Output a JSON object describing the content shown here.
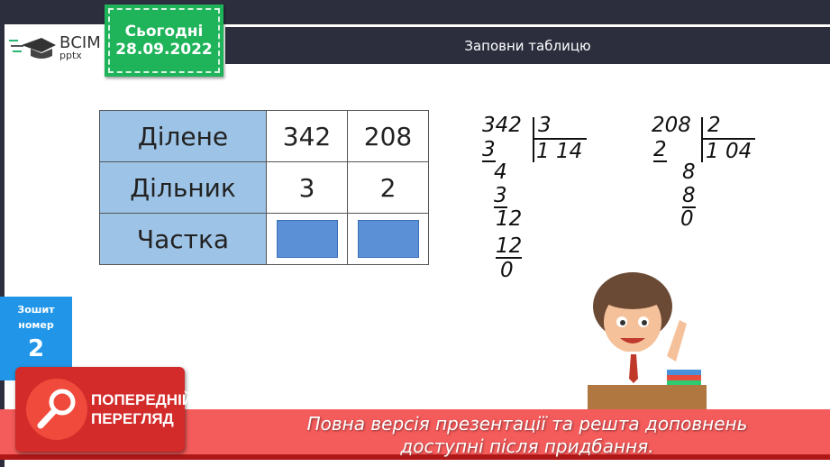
{
  "date_badge": {
    "label": "Сьогодні",
    "date": "28.09.2022"
  },
  "logo": {
    "line1": "ВСІМ",
    "line2": "pptx"
  },
  "header": {
    "title": "Заповни таблицю"
  },
  "table": {
    "rows": [
      {
        "label": "Ділене",
        "values": [
          "342",
          "208"
        ]
      },
      {
        "label": "Дільник",
        "values": [
          "3",
          "2"
        ]
      },
      {
        "label": "Частка",
        "values": [
          "",
          ""
        ]
      }
    ]
  },
  "division1": {
    "dividend": "342",
    "divisor": "3",
    "quotient": "1 14",
    "steps": [
      "3",
      "4",
      "3",
      "12",
      "12",
      "0"
    ]
  },
  "division2": {
    "dividend": "208",
    "divisor": "2",
    "quotient": "1 04",
    "steps": [
      "2",
      "8",
      "8",
      "0"
    ]
  },
  "notebook": {
    "line1": "Зошит",
    "line2": "номер",
    "number": "2"
  },
  "preview_badge": {
    "line1": "ПОПЕРЕДНІЙ",
    "line2": "ПЕРЕГЛЯД"
  },
  "banner": {
    "line1": "Повна версія презентації та решта доповнень",
    "line2": "доступні після придбання."
  },
  "partial_text": "С"
}
